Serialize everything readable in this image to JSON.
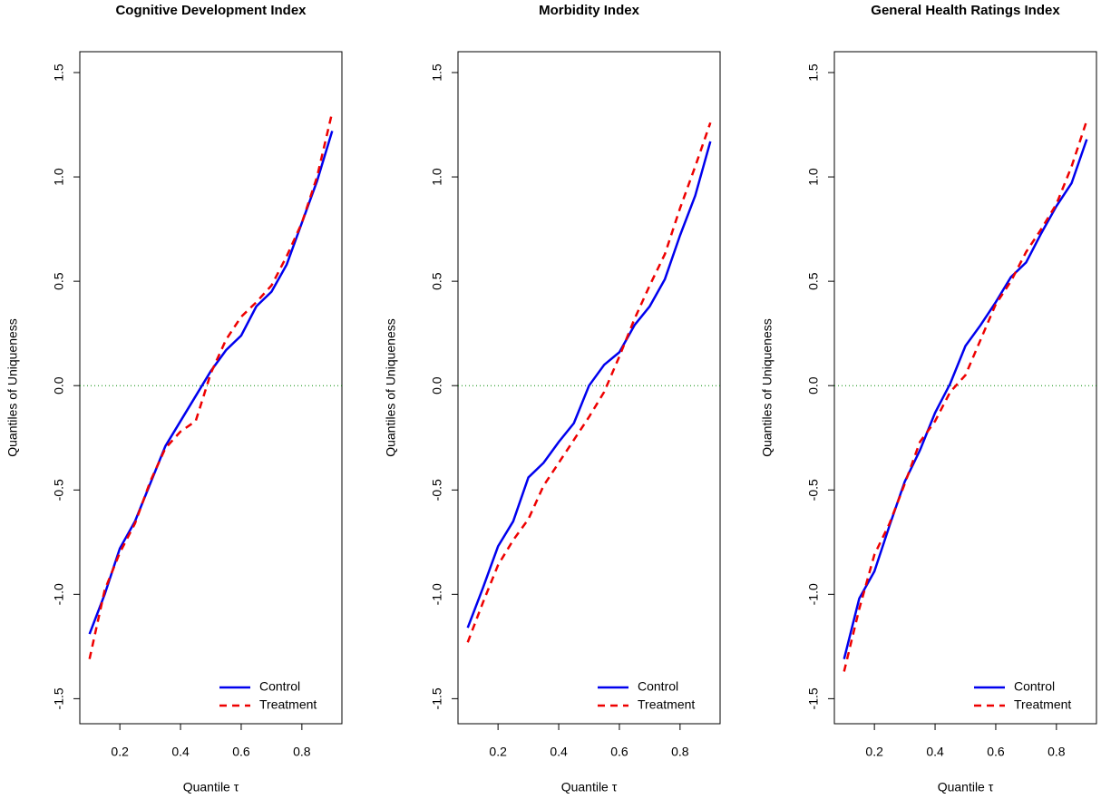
{
  "chart_data": [
    {
      "type": "line",
      "title": "Cognitive Development Index",
      "xlabel": "Quantile τ",
      "ylabel": "Quantiles of Uniqueness",
      "x": [
        0.1,
        0.15,
        0.2,
        0.25,
        0.3,
        0.35,
        0.4,
        0.45,
        0.5,
        0.55,
        0.6,
        0.65,
        0.7,
        0.75,
        0.8,
        0.85,
        0.9
      ],
      "series": [
        {
          "name": "Control",
          "color": "#0000ee",
          "linestyle": "solid",
          "values": [
            -1.19,
            -1.0,
            -0.78,
            -0.65,
            -0.47,
            -0.29,
            -0.17,
            -0.05,
            0.07,
            0.17,
            0.24,
            0.38,
            0.45,
            0.58,
            0.78,
            0.98,
            1.22
          ]
        },
        {
          "name": "Treatment",
          "color": "#ee0000",
          "linestyle": "dashed",
          "values": [
            -1.31,
            -0.98,
            -0.8,
            -0.66,
            -0.46,
            -0.3,
            -0.22,
            -0.17,
            0.06,
            0.22,
            0.33,
            0.4,
            0.48,
            0.62,
            0.78,
            1.0,
            1.31
          ]
        }
      ],
      "xlim": [
        0.068,
        0.932
      ],
      "ylim": [
        -1.62,
        1.6
      ],
      "xticks": [
        0.2,
        0.4,
        0.6,
        0.8
      ],
      "yticks": [
        -1.5,
        {
          "value": -1,
          "label": "-1.0"
        },
        -0.5,
        {
          "value": 0,
          "label": "0.0"
        },
        0.5,
        {
          "value": 1,
          "label": "1.0"
        },
        1.5
      ],
      "reference_line": 0,
      "reference_color": "#008800",
      "legend": "bottomright"
    },
    {
      "type": "line",
      "title": "Morbidity Index",
      "xlabel": "Quantile τ",
      "ylabel": "Quantiles of Uniqueness",
      "x": [
        0.1,
        0.15,
        0.2,
        0.25,
        0.3,
        0.35,
        0.4,
        0.45,
        0.5,
        0.55,
        0.6,
        0.65,
        0.7,
        0.75,
        0.8,
        0.85,
        0.9
      ],
      "series": [
        {
          "name": "Control",
          "color": "#0000ee",
          "linestyle": "solid",
          "values": [
            -1.16,
            -0.97,
            -0.77,
            -0.65,
            -0.44,
            -0.37,
            -0.27,
            -0.18,
            0.0,
            0.1,
            0.16,
            0.29,
            0.38,
            0.51,
            0.72,
            0.91,
            1.17
          ]
        },
        {
          "name": "Treatment",
          "color": "#ee0000",
          "linestyle": "dashed",
          "values": [
            -1.23,
            -1.04,
            -0.86,
            -0.74,
            -0.64,
            -0.48,
            -0.37,
            -0.26,
            -0.15,
            -0.03,
            0.14,
            0.32,
            0.48,
            0.63,
            0.85,
            1.05,
            1.26
          ]
        }
      ],
      "xlim": [
        0.068,
        0.932
      ],
      "ylim": [
        -1.62,
        1.6
      ],
      "xticks": [
        0.2,
        0.4,
        0.6,
        0.8
      ],
      "yticks": [
        -1.5,
        {
          "value": -1,
          "label": "-1.0"
        },
        -0.5,
        {
          "value": 0,
          "label": "0.0"
        },
        0.5,
        {
          "value": 1,
          "label": "1.0"
        },
        1.5
      ],
      "reference_line": 0,
      "reference_color": "#008800",
      "legend": "bottomright"
    },
    {
      "type": "line",
      "title": "General Health Ratings Index",
      "xlabel": "Quantile τ",
      "ylabel": "Quantiles of Uniqueness",
      "x": [
        0.1,
        0.15,
        0.2,
        0.25,
        0.3,
        0.35,
        0.4,
        0.45,
        0.5,
        0.55,
        0.6,
        0.65,
        0.7,
        0.75,
        0.8,
        0.85,
        0.9
      ],
      "series": [
        {
          "name": "Control",
          "color": "#0000ee",
          "linestyle": "solid",
          "values": [
            -1.31,
            -1.02,
            -0.89,
            -0.67,
            -0.46,
            -0.31,
            -0.13,
            0.01,
            0.19,
            0.29,
            0.4,
            0.52,
            0.59,
            0.73,
            0.86,
            0.97,
            1.18
          ]
        },
        {
          "name": "Treatment",
          "color": "#ee0000",
          "linestyle": "dashed",
          "values": [
            -1.37,
            -1.07,
            -0.81,
            -0.66,
            -0.47,
            -0.27,
            -0.17,
            -0.03,
            0.05,
            0.22,
            0.39,
            0.5,
            0.64,
            0.75,
            0.87,
            1.05,
            1.27
          ]
        }
      ],
      "xlim": [
        0.068,
        0.932
      ],
      "ylim": [
        -1.62,
        1.6
      ],
      "xticks": [
        0.2,
        0.4,
        0.6,
        0.8
      ],
      "yticks": [
        -1.5,
        {
          "value": -1,
          "label": "-1.0"
        },
        -0.5,
        {
          "value": 0,
          "label": "0.0"
        },
        0.5,
        {
          "value": 1,
          "label": "1.0"
        },
        1.5
      ],
      "reference_line": 0,
      "reference_color": "#008800",
      "legend": "bottomright"
    }
  ]
}
